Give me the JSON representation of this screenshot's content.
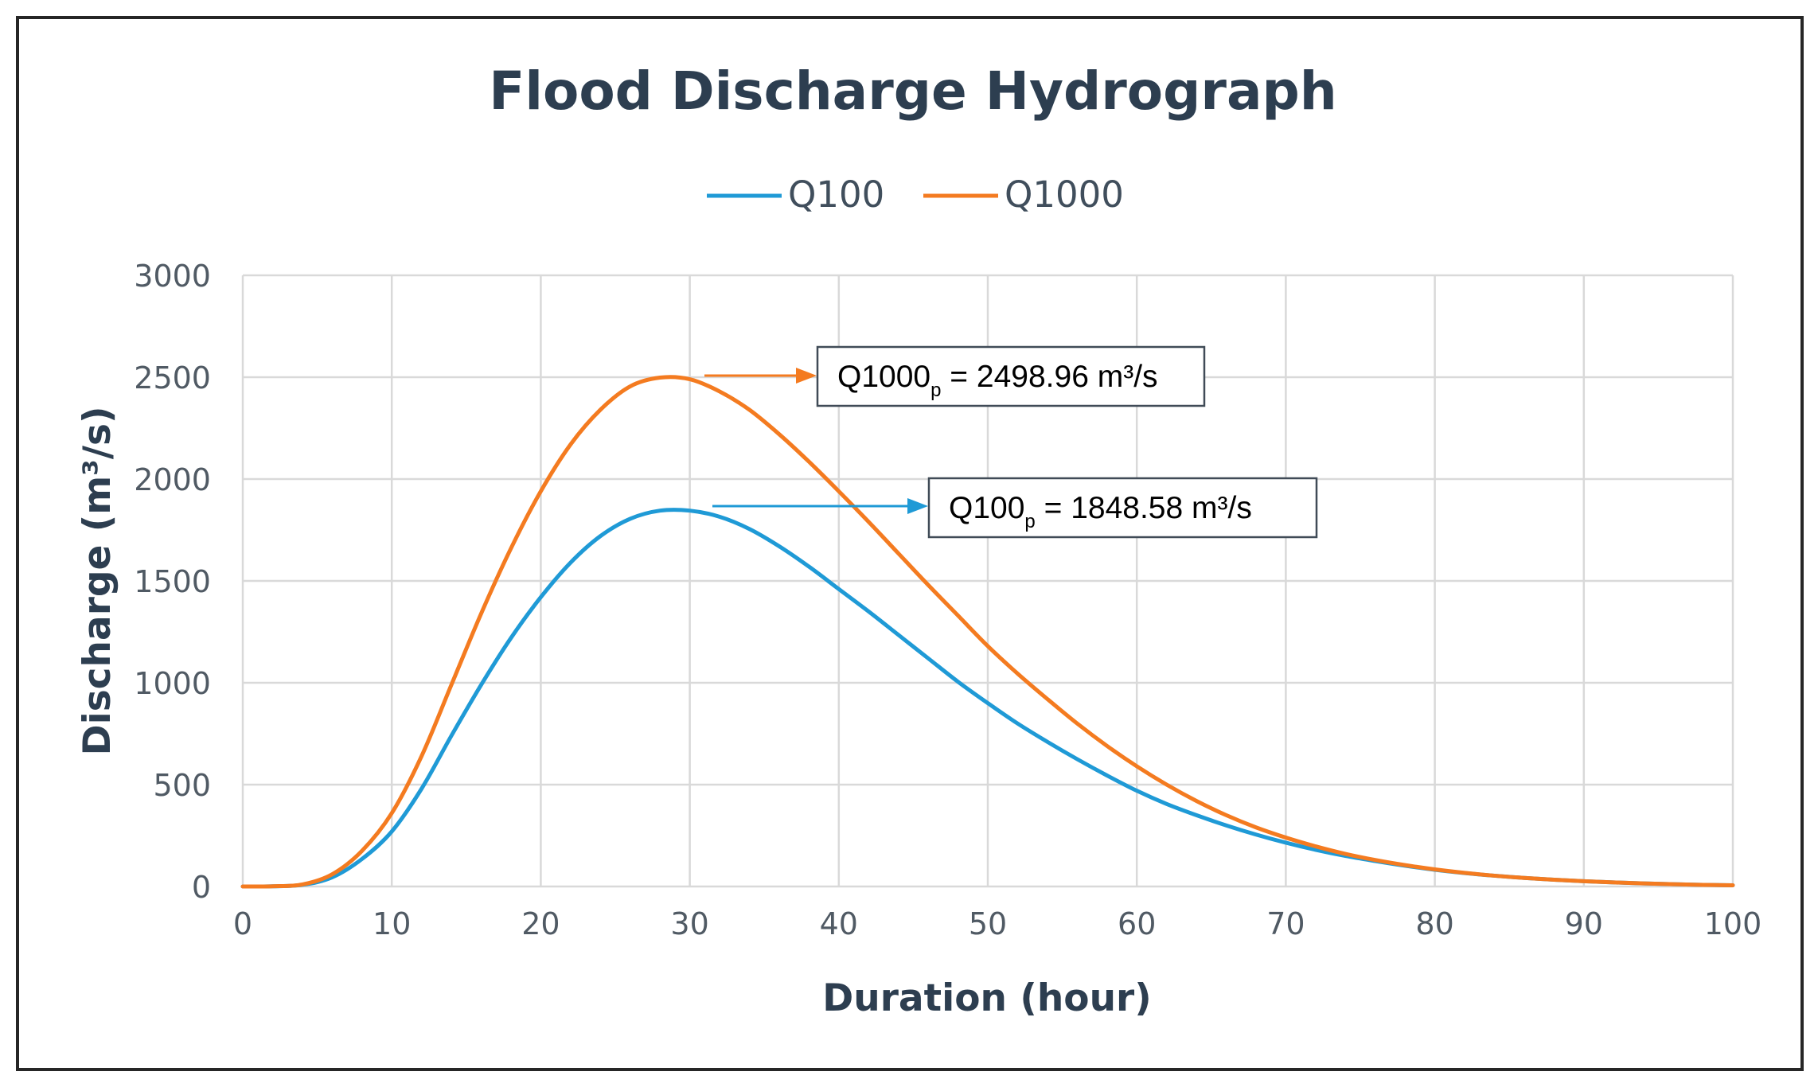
{
  "chart_data": {
    "type": "line",
    "title": "Flood Discharge Hydrograph",
    "xlabel": "Duration (hour)",
    "ylabel": "Discharge (m³/s)",
    "xlim": [
      0,
      100
    ],
    "ylim": [
      0,
      3000
    ],
    "xticks": [
      0,
      10,
      20,
      30,
      40,
      50,
      60,
      70,
      80,
      90,
      100
    ],
    "yticks": [
      0,
      500,
      1000,
      1500,
      2000,
      2500,
      3000
    ],
    "grid": true,
    "legend_position": "top-center",
    "x": [
      0,
      2,
      4,
      6,
      8,
      10,
      12,
      14,
      16,
      18,
      20,
      22,
      24,
      26,
      28,
      30,
      32,
      34,
      36,
      38,
      40,
      42,
      44,
      46,
      48,
      50,
      52,
      54,
      56,
      58,
      60,
      62,
      64,
      66,
      68,
      70,
      72,
      74,
      76,
      78,
      80,
      82,
      84,
      86,
      88,
      90,
      92,
      94,
      96,
      98,
      100
    ],
    "series": [
      {
        "name": "Q100",
        "color": "#1f9ad6",
        "values": [
          0,
          1,
          8,
          45,
          135,
          270,
          480,
          740,
          990,
          1220,
          1420,
          1590,
          1720,
          1805,
          1845,
          1845,
          1815,
          1755,
          1670,
          1570,
          1460,
          1350,
          1235,
          1120,
          1005,
          900,
          800,
          710,
          625,
          545,
          470,
          405,
          350,
          300,
          255,
          215,
          180,
          150,
          125,
          102,
          82,
          66,
          53,
          42,
          33,
          26,
          20,
          15,
          11,
          8,
          6
        ]
      },
      {
        "name": "Q1000",
        "color": "#f47b20",
        "values": [
          0,
          1,
          10,
          60,
          175,
          360,
          640,
          990,
          1340,
          1660,
          1940,
          2170,
          2340,
          2455,
          2498,
          2490,
          2430,
          2340,
          2220,
          2085,
          1940,
          1790,
          1635,
          1480,
          1330,
          1180,
          1045,
          920,
          800,
          690,
          590,
          500,
          420,
          350,
          290,
          240,
          197,
          160,
          130,
          105,
          84,
          67,
          53,
          42,
          33,
          26,
          20,
          15,
          11,
          8,
          6
        ]
      }
    ],
    "annotations": [
      {
        "series": "Q1000",
        "label_main": "Q1000",
        "label_sub": "p",
        "label_value": " = 2498.96 m³/s",
        "peak": 2498.96,
        "peak_x": 28.5
      },
      {
        "series": "Q100",
        "label_main": "Q100",
        "label_sub": "p",
        "label_value": " = 1848.58 m³/s",
        "peak": 1848.58,
        "peak_x": 28.5
      }
    ]
  }
}
